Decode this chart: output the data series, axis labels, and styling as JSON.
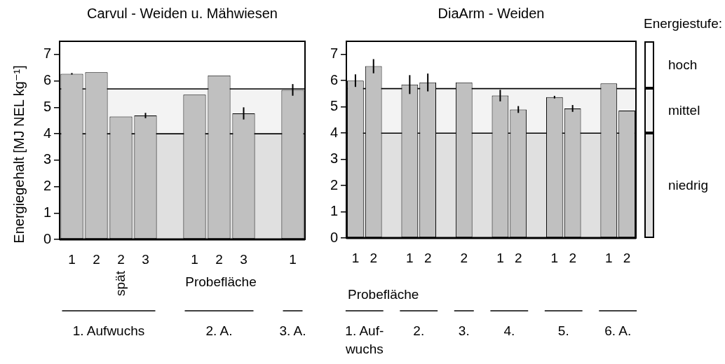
{
  "chart_data": [
    {
      "type": "bar",
      "title": "Carvul - Weiden u. Mähwiesen",
      "ylabel": "Energiegehalt [MJ NEL kg⁻¹]",
      "xlabel": "Probefläche",
      "categories": [
        "1",
        "2",
        "2\nspät",
        "3",
        null,
        "1",
        "2",
        "3",
        null,
        "1"
      ],
      "values": [
        6.27,
        6.33,
        4.65,
        4.69,
        null,
        5.48,
        6.21,
        4.77,
        null,
        5.66
      ],
      "errors": [
        0.03,
        null,
        null,
        0.1,
        null,
        null,
        null,
        0.23,
        null,
        0.22
      ],
      "color": "#c0c0c0",
      "ylim": [
        0,
        7.5
      ],
      "yticks": [
        0,
        1,
        2,
        3,
        4,
        5,
        6,
        7
      ],
      "bands": [
        {
          "axis": "y",
          "from": 0,
          "to": 4,
          "color": "#e0e0e0"
        },
        {
          "axis": "y",
          "from": 4,
          "to": 5.7,
          "color": "#f3f3f3"
        }
      ],
      "annotations": [
        "1. Aufwuchs",
        "2. A.",
        "3. A."
      ]
    },
    {
      "type": "bar",
      "title": "DiaArm - Weiden",
      "xlabel": "Probefläche",
      "legend_title": "Energiestufe:",
      "categories": [
        "1",
        "2",
        null,
        "1",
        "2",
        null,
        "2",
        null,
        "1",
        "2",
        null,
        "1",
        "2",
        null,
        "1",
        "2"
      ],
      "values": [
        6.0,
        6.55,
        null,
        5.85,
        5.93,
        null,
        5.93,
        null,
        5.43,
        4.9,
        null,
        5.37,
        4.94,
        null,
        5.89,
        4.86
      ],
      "errors": [
        0.24,
        0.27,
        null,
        0.36,
        0.34,
        null,
        null,
        null,
        0.22,
        0.13,
        null,
        0.05,
        0.13,
        null,
        null,
        null
      ],
      "color": "#c0c0c0",
      "ylim": [
        0,
        7.5
      ],
      "yticks": [
        0,
        1,
        2,
        3,
        4,
        5,
        6,
        7
      ],
      "bands": [
        {
          "axis": "y",
          "from": 0,
          "to": 4,
          "label": "niedrig",
          "color": "#e0e0e0"
        },
        {
          "axis": "y",
          "from": 4,
          "to": 5.7,
          "label": "mittel",
          "color": "#f3f3f3"
        },
        {
          "axis": "y",
          "from": 5.7,
          "to": 7.5,
          "label": "hoch",
          "color": "#ffffff"
        }
      ],
      "annotations": [
        "1. Auf-\nwuchs",
        "2.",
        "3.",
        "4.",
        "5.",
        "6. A."
      ]
    }
  ]
}
